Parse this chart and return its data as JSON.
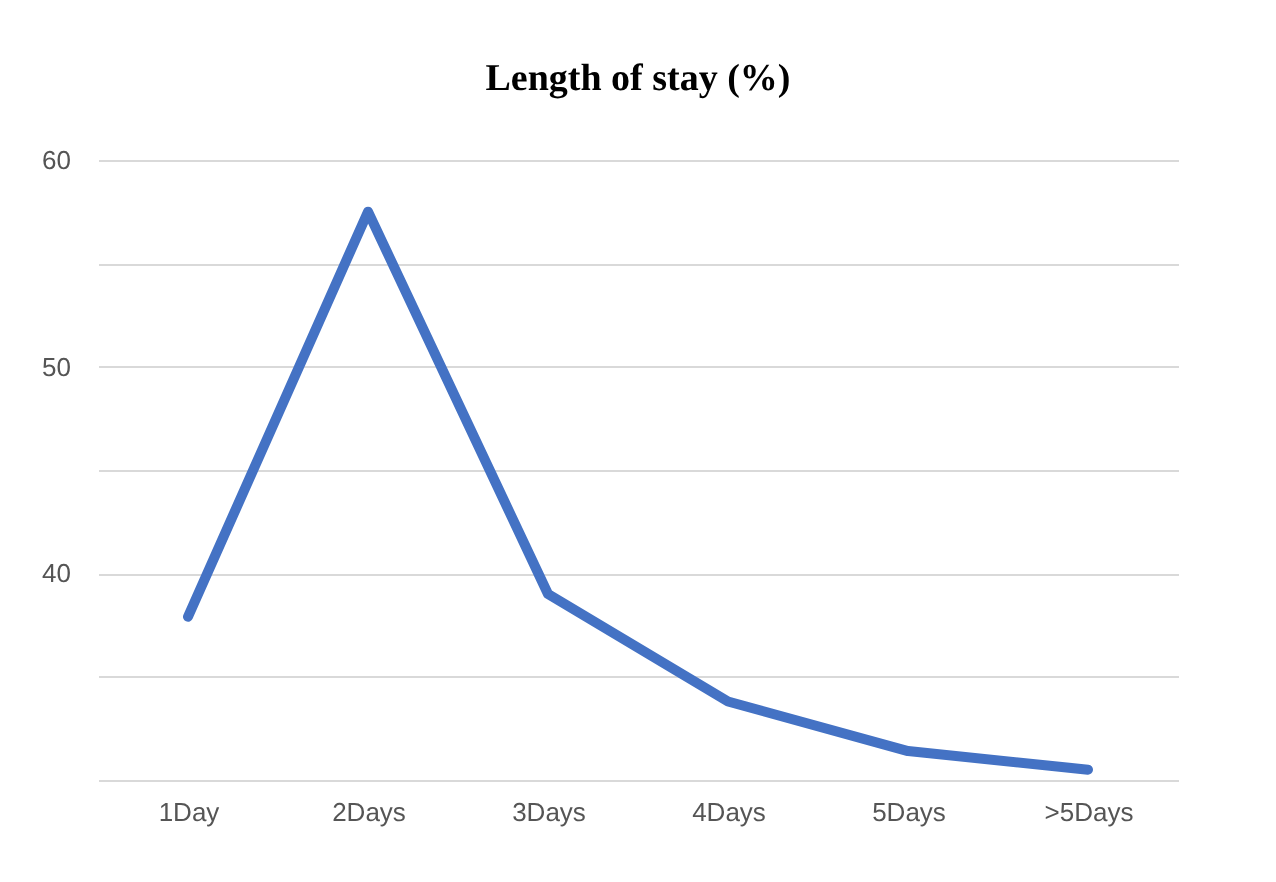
{
  "chart_data": {
    "type": "line",
    "title": "Length of stay (%)",
    "categories": [
      "1Day",
      "2Days",
      "3Days",
      "4Days",
      "5Days",
      ">5Days"
    ],
    "series": [
      {
        "color": "#4472c4",
        "values": [
          37.9,
          57.5,
          39.0,
          33.8,
          31.4,
          30.5
        ]
      }
    ],
    "ylim": [
      30,
      60
    ],
    "yticks": [
      {
        "value": 30,
        "label": null
      },
      {
        "value": 35,
        "label": null
      },
      40,
      {
        "value": 45,
        "label": null
      },
      50,
      {
        "value": 55,
        "label": null
      },
      60
    ],
    "grid": "y",
    "marker": "none",
    "line_style": "solid"
  }
}
